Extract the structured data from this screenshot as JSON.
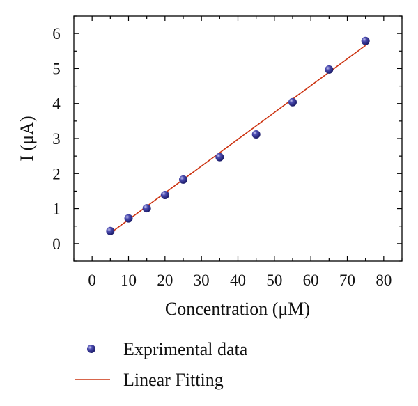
{
  "chart_data": {
    "type": "scatter",
    "xlabel": "Concentration (μM)",
    "ylabel": "I (μA)",
    "xlim": [
      -5,
      85
    ],
    "ylim": [
      -0.5,
      6.5
    ],
    "xticks": [
      0,
      10,
      20,
      30,
      40,
      50,
      60,
      70,
      80
    ],
    "yticks": [
      0,
      1,
      2,
      3,
      4,
      5,
      6
    ],
    "x_minor_step": 5,
    "y_minor_step": 0.5,
    "grid": false,
    "legend_position": "bottom",
    "series": [
      {
        "name": "Exprimental data",
        "kind": "scatter",
        "color": "#2a2a8c",
        "points": [
          {
            "x": 5,
            "y": 0.36
          },
          {
            "x": 10,
            "y": 0.72
          },
          {
            "x": 15,
            "y": 1.01
          },
          {
            "x": 20,
            "y": 1.39
          },
          {
            "x": 25,
            "y": 1.83
          },
          {
            "x": 35,
            "y": 2.47
          },
          {
            "x": 45,
            "y": 3.12
          },
          {
            "x": 55,
            "y": 4.04
          },
          {
            "x": 65,
            "y": 4.97
          },
          {
            "x": 75,
            "y": 5.79
          }
        ]
      },
      {
        "name": "Linear Fitting",
        "kind": "line",
        "color": "#cc3311",
        "points": [
          {
            "x": 5,
            "y": 0.3
          },
          {
            "x": 75,
            "y": 5.66
          }
        ]
      }
    ]
  }
}
